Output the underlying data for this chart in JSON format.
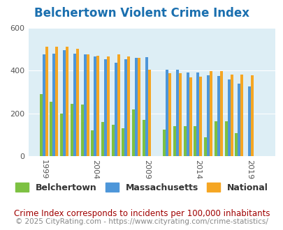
{
  "title": "Belchertown Violent Crime Index",
  "subtitle": "Crime Index corresponds to incidents per 100,000 inhabitants",
  "copyright": "© 2025 CityRating.com - https://www.cityrating.com/crime-statistics/",
  "years": [
    1999,
    2000,
    2001,
    2002,
    2003,
    2004,
    2005,
    2006,
    2007,
    2008,
    2009,
    2010,
    2011,
    2012,
    2013,
    2014,
    2015,
    2016,
    2017,
    2018,
    2019,
    2020
  ],
  "belchertown": [
    290,
    255,
    200,
    245,
    240,
    120,
    162,
    148,
    130,
    220,
    170,
    0,
    125,
    140,
    140,
    140,
    90,
    165,
    165,
    107,
    0,
    0
  ],
  "massachusetts": [
    475,
    480,
    495,
    477,
    475,
    465,
    452,
    435,
    452,
    460,
    462,
    0,
    405,
    405,
    390,
    390,
    378,
    375,
    357,
    340,
    325,
    0
  ],
  "national": [
    510,
    510,
    510,
    500,
    475,
    470,
    465,
    475,
    467,
    458,
    403,
    0,
    388,
    387,
    367,
    373,
    398,
    398,
    380,
    380,
    379,
    0
  ],
  "bar_width": 0.27,
  "ylim": [
    0,
    600
  ],
  "yticks": [
    0,
    200,
    400,
    600
  ],
  "title_color": "#1a6faf",
  "title_fontsize": 12,
  "subtitle_color": "#a00000",
  "subtitle_fontsize": 8.5,
  "copyright_color": "#888888",
  "copyright_fontsize": 7.5,
  "color_belchertown": "#7dc142",
  "color_massachusetts": "#4d96d9",
  "color_national": "#f5a623",
  "background_color": "#ddeef5",
  "legend_labels": [
    "Belchertown",
    "Massachusetts",
    "National"
  ],
  "tick_label_color": "#555555",
  "grid_color": "#ffffff",
  "xlabel_years": [
    1999,
    2004,
    2009,
    2014,
    2019
  ]
}
